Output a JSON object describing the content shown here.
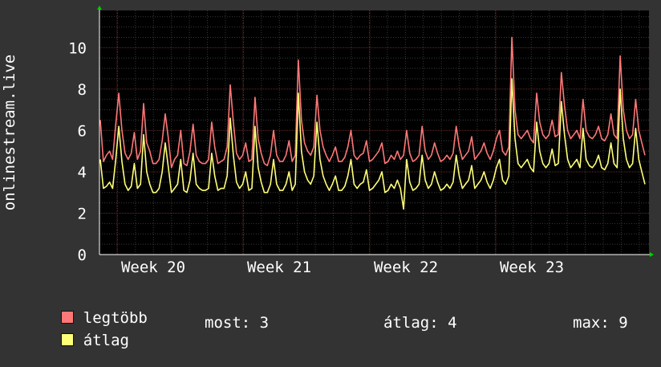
{
  "chart_data": {
    "type": "line",
    "ylabel": "onlinestream.live",
    "y_ticks": [
      "0",
      "2",
      "4",
      "6",
      "8",
      "10"
    ],
    "ylim": [
      0,
      11.8
    ],
    "x_ticks": [
      "Week 20",
      "Week 21",
      "Week 22",
      "Week 23"
    ],
    "grid": true,
    "series": [
      {
        "name": "legtöbb",
        "color": "#ff7777",
        "values": [
          6.5,
          4.5,
          4.8,
          5.0,
          4.6,
          6.3,
          7.8,
          6.0,
          4.9,
          4.6,
          4.9,
          5.9,
          4.6,
          5.0,
          7.3,
          5.4,
          5.0,
          4.4,
          4.4,
          4.6,
          5.5,
          6.8,
          5.6,
          4.2,
          4.6,
          4.8,
          6.0,
          4.4,
          4.3,
          5.0,
          6.3,
          4.8,
          4.5,
          4.4,
          4.4,
          4.6,
          6.4,
          5.2,
          4.4,
          4.5,
          4.6,
          5.2,
          8.2,
          6.4,
          4.9,
          4.6,
          4.8,
          5.4,
          4.5,
          4.6,
          7.6,
          5.6,
          4.9,
          4.4,
          4.3,
          4.8,
          6.0,
          4.8,
          4.5,
          4.5,
          4.8,
          5.5,
          4.5,
          4.8,
          9.4,
          6.5,
          5.4,
          5.0,
          4.8,
          5.2,
          7.7,
          6.0,
          5.2,
          4.8,
          4.5,
          4.8,
          5.2,
          4.5,
          4.5,
          4.7,
          5.2,
          6.0,
          4.8,
          4.6,
          4.8,
          4.9,
          5.5,
          4.5,
          4.6,
          4.8,
          5.0,
          5.4,
          4.4,
          4.5,
          4.8,
          4.6,
          5.0,
          4.6,
          4.8,
          6.0,
          4.9,
          4.5,
          4.6,
          4.8,
          6.2,
          5.0,
          4.6,
          4.8,
          5.4,
          4.9,
          4.5,
          4.6,
          4.8,
          4.6,
          4.9,
          6.2,
          5.2,
          4.6,
          4.8,
          5.0,
          5.7,
          4.6,
          4.8,
          5.0,
          5.4,
          4.9,
          4.6,
          5.0,
          5.6,
          6.0,
          5.0,
          4.8,
          5.2,
          10.5,
          7.0,
          5.8,
          5.6,
          5.8,
          6.0,
          5.6,
          5.4,
          7.8,
          6.4,
          5.8,
          5.6,
          5.8,
          6.5,
          5.7,
          5.8,
          8.8,
          7.2,
          6.0,
          5.6,
          5.8,
          6.0,
          5.6,
          7.5,
          6.0,
          5.7,
          5.6,
          5.8,
          6.2,
          5.6,
          5.5,
          5.8,
          6.8,
          5.8,
          5.6,
          9.6,
          7.0,
          6.0,
          5.6,
          5.8,
          7.5,
          6.0,
          5.4,
          4.8
        ]
      },
      {
        "name": "átlag",
        "color": "#ffff77",
        "values": [
          4.6,
          3.2,
          3.3,
          3.5,
          3.2,
          4.6,
          6.2,
          4.5,
          3.4,
          3.1,
          3.3,
          4.4,
          3.2,
          3.4,
          5.8,
          4.0,
          3.4,
          3.0,
          3.0,
          3.2,
          4.0,
          5.4,
          4.2,
          3.0,
          3.2,
          3.4,
          4.6,
          3.1,
          3.0,
          3.6,
          4.9,
          3.4,
          3.2,
          3.1,
          3.1,
          3.2,
          4.9,
          3.8,
          3.1,
          3.2,
          3.2,
          3.8,
          6.6,
          4.8,
          3.5,
          3.2,
          3.4,
          4.0,
          3.1,
          3.2,
          6.2,
          4.2,
          3.5,
          3.0,
          3.0,
          3.4,
          4.6,
          3.4,
          3.1,
          3.1,
          3.4,
          4.0,
          3.1,
          3.4,
          7.8,
          5.0,
          4.0,
          3.6,
          3.4,
          3.8,
          6.4,
          4.6,
          3.8,
          3.4,
          3.1,
          3.4,
          3.8,
          3.1,
          3.1,
          3.3,
          3.8,
          4.6,
          3.4,
          3.2,
          3.4,
          3.5,
          4.1,
          3.1,
          3.2,
          3.4,
          3.6,
          4.0,
          3.0,
          3.1,
          3.4,
          3.2,
          3.6,
          3.2,
          2.2,
          4.6,
          3.5,
          3.1,
          3.2,
          3.4,
          4.8,
          3.6,
          3.2,
          3.4,
          4.0,
          3.5,
          3.1,
          3.2,
          3.4,
          3.2,
          3.5,
          4.8,
          3.8,
          3.2,
          3.4,
          3.6,
          4.3,
          3.2,
          3.4,
          3.6,
          4.0,
          3.5,
          3.2,
          3.6,
          4.2,
          4.6,
          3.6,
          3.4,
          3.8,
          8.5,
          5.6,
          4.4,
          4.2,
          4.4,
          4.6,
          4.2,
          4.0,
          6.4,
          5.0,
          4.4,
          4.2,
          4.4,
          5.1,
          4.3,
          4.4,
          7.4,
          5.8,
          4.6,
          4.2,
          4.4,
          4.6,
          4.2,
          6.1,
          4.6,
          4.3,
          4.2,
          4.4,
          4.8,
          4.2,
          4.1,
          4.4,
          5.4,
          4.4,
          4.2,
          8.0,
          5.6,
          4.6,
          4.2,
          4.4,
          6.1,
          4.6,
          4.0,
          3.4
        ]
      }
    ]
  },
  "legend": {
    "max_label": "legtöbb",
    "avg_label": "átlag",
    "max_color": "#ff7777",
    "avg_color": "#ffff77"
  },
  "stats": {
    "now": "most: 3",
    "avg": "átlag: 4",
    "max": "max: 9"
  }
}
